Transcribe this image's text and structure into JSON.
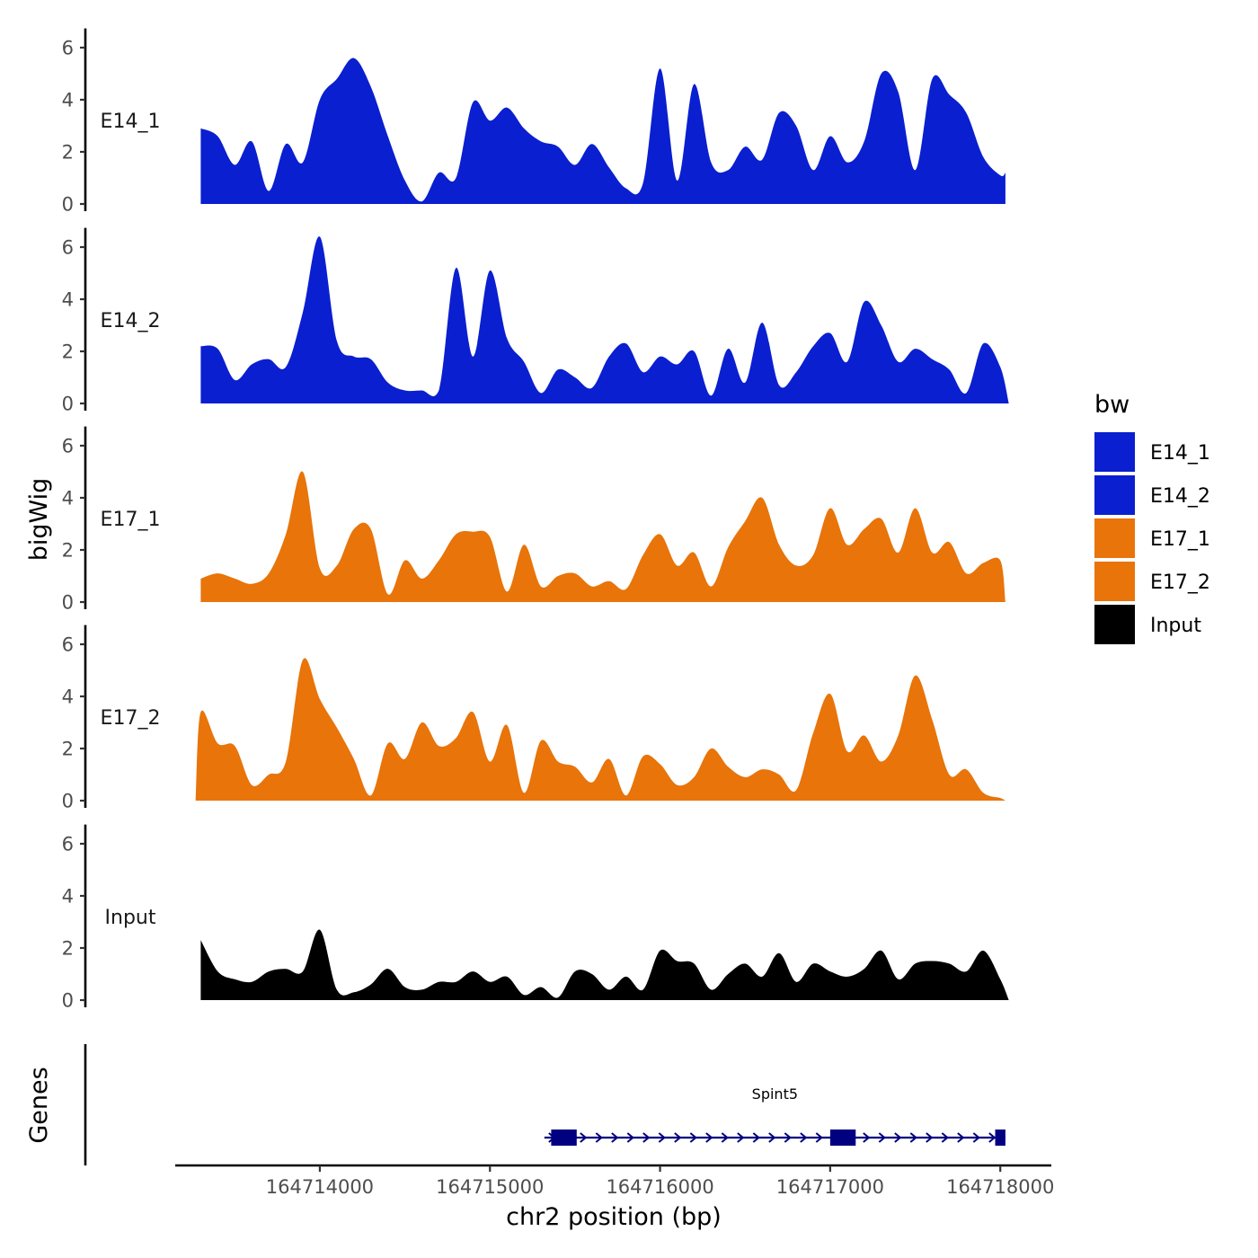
{
  "chart_data": {
    "type": "area",
    "chromosome": "chr2",
    "xlabel": "chr2 position (bp)",
    "ylabel": "bigWig",
    "genes_label": "Genes",
    "xlim": [
      164713150,
      164718300
    ],
    "ylim": [
      0,
      6.6
    ],
    "x_ticks": [
      164714000,
      164715000,
      164716000,
      164717000,
      164718000
    ],
    "x_tick_labels": [
      "164714000",
      "164715000",
      "164716000",
      "164717000",
      "164718000"
    ],
    "y_ticks": [
      0,
      2,
      4,
      6
    ],
    "y_tick_labels": [
      "0",
      "2",
      "4",
      "6"
    ],
    "legend": {
      "title": "bw",
      "entries": [
        {
          "label": "E14_1",
          "color": "#0a1fd0"
        },
        {
          "label": "E14_2",
          "color": "#0a1fd0"
        },
        {
          "label": "E17_1",
          "color": "#e8740a"
        },
        {
          "label": "E17_2",
          "color": "#e8740a"
        },
        {
          "label": "Input",
          "color": "#000000"
        }
      ]
    },
    "series": [
      {
        "name": "E14_1",
        "color": "#0a1fd0",
        "x": [
          164713300,
          164713400,
          164713500,
          164713600,
          164713700,
          164713800,
          164713900,
          164714000,
          164714100,
          164714200,
          164714300,
          164714400,
          164714500,
          164714600,
          164714700,
          164714800,
          164714900,
          164715000,
          164715100,
          164715200,
          164715300,
          164715400,
          164715500,
          164715600,
          164715700,
          164715800,
          164715900,
          164716000,
          164716100,
          164716200,
          164716300,
          164716400,
          164716500,
          164716600,
          164716700,
          164716800,
          164716900,
          164717000,
          164717100,
          164717200,
          164717300,
          164717400,
          164717500,
          164717600,
          164717700,
          164717800,
          164717900,
          164718000,
          164718030
        ],
        "values": [
          2.9,
          2.6,
          1.5,
          2.4,
          0.5,
          2.3,
          1.6,
          4.0,
          4.8,
          5.6,
          4.5,
          2.6,
          0.9,
          0.1,
          1.2,
          1.0,
          3.9,
          3.2,
          3.7,
          2.9,
          2.4,
          2.2,
          1.5,
          2.3,
          1.4,
          0.6,
          0.8,
          5.2,
          0.9,
          4.6,
          1.6,
          1.3,
          2.2,
          1.7,
          3.5,
          3.0,
          1.3,
          2.6,
          1.6,
          2.4,
          5.0,
          4.3,
          1.3,
          4.8,
          4.2,
          3.5,
          1.8,
          1.1,
          1.2
        ]
      },
      {
        "name": "E14_2",
        "color": "#0a1fd0",
        "x": [
          164713300,
          164713400,
          164713500,
          164713600,
          164713700,
          164713800,
          164713900,
          164714000,
          164714100,
          164714200,
          164714300,
          164714400,
          164714500,
          164714600,
          164714700,
          164714800,
          164714900,
          164715000,
          164715100,
          164715200,
          164715300,
          164715400,
          164715500,
          164715600,
          164715700,
          164715800,
          164715900,
          164716000,
          164716100,
          164716200,
          164716300,
          164716400,
          164716500,
          164716600,
          164716700,
          164716800,
          164716900,
          164717000,
          164717100,
          164717200,
          164717300,
          164717400,
          164717500,
          164717600,
          164717700,
          164717800,
          164717900,
          164718000,
          164718050
        ],
        "values": [
          2.2,
          2.1,
          0.9,
          1.5,
          1.7,
          1.4,
          3.5,
          6.4,
          2.4,
          1.8,
          1.7,
          0.8,
          0.5,
          0.5,
          0.5,
          5.2,
          1.8,
          5.1,
          2.5,
          1.6,
          0.4,
          1.3,
          1.0,
          0.6,
          1.8,
          2.3,
          1.2,
          1.8,
          1.5,
          2.0,
          0.3,
          2.1,
          0.8,
          3.1,
          0.7,
          1.2,
          2.2,
          2.7,
          1.6,
          3.9,
          3.0,
          1.6,
          2.1,
          1.7,
          1.3,
          0.4,
          2.3,
          1.4,
          0.0
        ]
      },
      {
        "name": "E17_1",
        "color": "#e8740a",
        "x": [
          164713300,
          164713400,
          164713500,
          164713600,
          164713700,
          164713800,
          164713900,
          164714000,
          164714100,
          164714200,
          164714300,
          164714400,
          164714500,
          164714600,
          164714700,
          164714800,
          164714900,
          164715000,
          164715100,
          164715200,
          164715300,
          164715400,
          164715500,
          164715600,
          164715700,
          164715800,
          164715900,
          164716000,
          164716100,
          164716200,
          164716300,
          164716400,
          164716500,
          164716600,
          164716700,
          164716800,
          164716900,
          164717000,
          164717100,
          164717200,
          164717300,
          164717400,
          164717500,
          164717600,
          164717700,
          164717800,
          164717900,
          164718000,
          164718030
        ],
        "values": [
          0.9,
          1.1,
          0.9,
          0.7,
          1.1,
          2.6,
          5.0,
          1.3,
          1.4,
          2.8,
          2.8,
          0.3,
          1.6,
          0.9,
          1.6,
          2.6,
          2.7,
          2.5,
          0.4,
          2.2,
          0.6,
          1.0,
          1.1,
          0.6,
          0.8,
          0.5,
          1.8,
          2.6,
          1.4,
          1.9,
          0.6,
          2.1,
          3.1,
          4.0,
          2.2,
          1.4,
          1.8,
          3.6,
          2.2,
          2.8,
          3.2,
          1.9,
          3.6,
          1.9,
          2.3,
          1.1,
          1.5,
          1.6,
          0.0
        ]
      },
      {
        "name": "E17_2",
        "color": "#e8740a",
        "x": [
          164713270,
          164713300,
          164713400,
          164713500,
          164713600,
          164713700,
          164713800,
          164713900,
          164714000,
          164714100,
          164714200,
          164714300,
          164714400,
          164714500,
          164714600,
          164714700,
          164714800,
          164714900,
          164715000,
          164715100,
          164715200,
          164715300,
          164715400,
          164715500,
          164715600,
          164715700,
          164715800,
          164715900,
          164716000,
          164716100,
          164716200,
          164716300,
          164716400,
          164716500,
          164716600,
          164716700,
          164716800,
          164716900,
          164717000,
          164717100,
          164717200,
          164717300,
          164717400,
          164717500,
          164717600,
          164717700,
          164717800,
          164717900,
          164718000,
          164718030
        ],
        "values": [
          0.0,
          3.4,
          2.2,
          2.1,
          0.6,
          1.0,
          1.5,
          5.4,
          3.9,
          2.8,
          1.6,
          0.2,
          2.2,
          1.6,
          3.0,
          2.1,
          2.4,
          3.4,
          1.5,
          2.9,
          0.3,
          2.3,
          1.5,
          1.3,
          0.7,
          1.6,
          0.2,
          1.7,
          1.4,
          0.6,
          0.9,
          2.0,
          1.3,
          0.9,
          1.2,
          1.0,
          0.4,
          2.6,
          4.1,
          1.9,
          2.5,
          1.5,
          2.5,
          4.8,
          3.1,
          1.0,
          1.2,
          0.3,
          0.1,
          0.0
        ]
      },
      {
        "name": "Input",
        "color": "#000000",
        "x": [
          164713300,
          164713400,
          164713500,
          164713600,
          164713700,
          164713800,
          164713900,
          164714000,
          164714100,
          164714200,
          164714300,
          164714400,
          164714500,
          164714600,
          164714700,
          164714800,
          164714900,
          164715000,
          164715100,
          164715200,
          164715300,
          164715400,
          164715500,
          164715600,
          164715700,
          164715800,
          164715900,
          164716000,
          164716100,
          164716200,
          164716300,
          164716400,
          164716500,
          164716600,
          164716700,
          164716800,
          164716900,
          164717000,
          164717100,
          164717200,
          164717300,
          164717400,
          164717500,
          164717600,
          164717700,
          164717800,
          164717900,
          164718000,
          164718050
        ],
        "values": [
          2.3,
          1.1,
          0.8,
          0.7,
          1.1,
          1.2,
          1.1,
          2.7,
          0.4,
          0.3,
          0.6,
          1.2,
          0.5,
          0.4,
          0.7,
          0.7,
          1.1,
          0.7,
          0.9,
          0.2,
          0.5,
          0.1,
          1.1,
          1.0,
          0.4,
          0.9,
          0.4,
          1.9,
          1.5,
          1.4,
          0.4,
          1.0,
          1.4,
          0.9,
          1.8,
          0.7,
          1.4,
          1.1,
          0.9,
          1.2,
          1.9,
          0.8,
          1.4,
          1.5,
          1.4,
          1.1,
          1.9,
          0.8,
          0.0
        ]
      }
    ],
    "genes": [
      {
        "name": "Spint5",
        "start": 164715320,
        "end": 164718030,
        "strand": "+",
        "color": "#000080",
        "exons": [
          [
            164715360,
            164715510
          ],
          [
            164717000,
            164717150
          ],
          [
            164717970,
            164718030
          ]
        ]
      }
    ]
  }
}
